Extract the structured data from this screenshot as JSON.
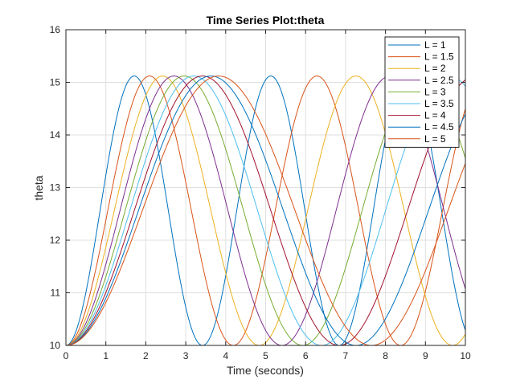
{
  "chart_data": {
    "type": "line",
    "title": "Time Series Plot:theta",
    "xlabel": "Time (seconds)",
    "ylabel": "theta",
    "xlim": [
      0,
      10
    ],
    "ylim": [
      10,
      16
    ],
    "xticks": [
      0,
      1,
      2,
      3,
      4,
      5,
      6,
      7,
      8,
      9,
      10
    ],
    "yticks": [
      10,
      11,
      12,
      13,
      14,
      15,
      16
    ],
    "grid": true,
    "legend_position": "top-right",
    "theta_min": 10,
    "theta_max": 15.12,
    "series": [
      {
        "name": "L = 1",
        "color": "#0072bd",
        "period": 3.42,
        "t0": 0.0,
        "t1": 10.0
      },
      {
        "name": "L = 1.5",
        "color": "#d95319",
        "period": 4.19,
        "t0": 0.0,
        "t1": 10.0
      },
      {
        "name": "L = 2",
        "color": "#edb120",
        "period": 4.84,
        "t0": 0.0,
        "t1": 10.0
      },
      {
        "name": "L = 2.5",
        "color": "#7e2f8e",
        "period": 5.41,
        "t0": 0.0,
        "t1": 10.0
      },
      {
        "name": "L = 3",
        "color": "#77ac30",
        "period": 5.93,
        "t0": 0.0,
        "t1": 10.0
      },
      {
        "name": "L = 3.5",
        "color": "#4dbeee",
        "period": 6.4,
        "t0": 0.0,
        "t1": 10.0
      },
      {
        "name": "L = 4",
        "color": "#a2142f",
        "period": 6.84,
        "t0": 0.0,
        "t1": 10.0
      },
      {
        "name": "L = 4.5",
        "color": "#0072bd",
        "period": 7.26,
        "t0": 0.0,
        "t1": 10.0
      },
      {
        "name": "L = 5",
        "color": "#d95319",
        "period": 7.65,
        "t0": 0.0,
        "t1": 10.0
      }
    ]
  }
}
